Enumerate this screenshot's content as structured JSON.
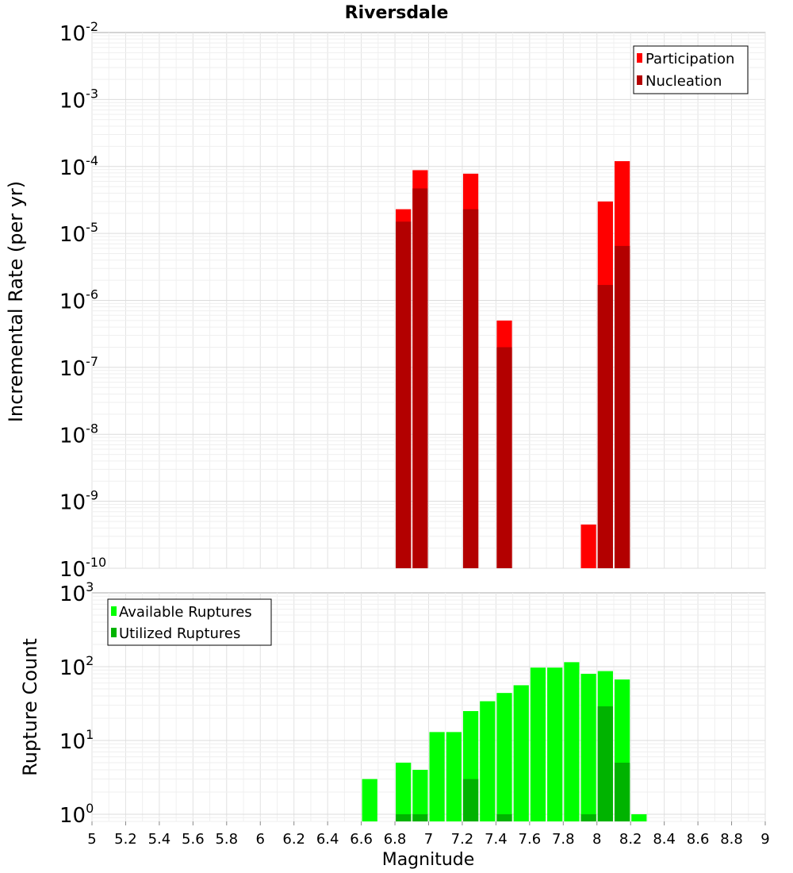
{
  "chart_data": [
    {
      "type": "bar",
      "title": "Riversdale",
      "ylabel": "Incremental Rate (per yr)",
      "xlabel": "",
      "yscale": "log",
      "ylim": [
        1e-10,
        0.01
      ],
      "xlim": [
        5,
        9
      ],
      "grid": true,
      "legend_placement": "top-right",
      "ytick_labels": [
        {
          "base": "10",
          "exp": "-10"
        },
        {
          "base": "10",
          "exp": "-9"
        },
        {
          "base": "10",
          "exp": "-8"
        },
        {
          "base": "10",
          "exp": "-7"
        },
        {
          "base": "10",
          "exp": "-6"
        },
        {
          "base": "10",
          "exp": "-5"
        },
        {
          "base": "10",
          "exp": "-4"
        },
        {
          "base": "10",
          "exp": "-3"
        },
        {
          "base": "10",
          "exp": "-2"
        }
      ],
      "series": [
        {
          "name": "Participation",
          "color": "#ff0000",
          "x": [
            6.85,
            6.95,
            7.25,
            7.45,
            7.95,
            8.05,
            8.15
          ],
          "values": [
            2.3e-05,
            8.8e-05,
            7.8e-05,
            5e-07,
            4.5e-10,
            3e-05,
            0.00012
          ]
        },
        {
          "name": "Nucleation",
          "color": "#b30000",
          "x": [
            6.85,
            6.95,
            7.25,
            7.45,
            8.05,
            8.15
          ],
          "values": [
            1.5e-05,
            4.7e-05,
            2.3e-05,
            2e-07,
            1.7e-06,
            6.5e-06
          ]
        }
      ]
    },
    {
      "type": "bar",
      "title": "",
      "ylabel": "Rupture Count",
      "xlabel": "Magnitude",
      "yscale": "log",
      "ylim": [
        0.8,
        1000
      ],
      "xlim": [
        5,
        9
      ],
      "grid": true,
      "legend_placement": "top-left",
      "xtick_labels": [
        "5",
        "5.2",
        "5.4",
        "5.6",
        "5.8",
        "6",
        "6.2",
        "6.4",
        "6.6",
        "6.8",
        "7",
        "7.2",
        "7.4",
        "7.6",
        "7.8",
        "8",
        "8.2",
        "8.4",
        "8.6",
        "8.8",
        "9"
      ],
      "ytick_labels": [
        {
          "base": "10",
          "exp": "0"
        },
        {
          "base": "10",
          "exp": "1"
        },
        {
          "base": "10",
          "exp": "2"
        },
        {
          "base": "10",
          "exp": "3"
        }
      ],
      "series": [
        {
          "name": "Available Ruptures",
          "color": "#00ff00",
          "x": [
            6.65,
            6.85,
            6.95,
            7.05,
            7.15,
            7.25,
            7.35,
            7.45,
            7.55,
            7.65,
            7.75,
            7.85,
            7.95,
            8.05,
            8.15,
            8.25
          ],
          "values": [
            3,
            5,
            4,
            13,
            13,
            25,
            34,
            44,
            56,
            97,
            97,
            115,
            80,
            87,
            67,
            1
          ]
        },
        {
          "name": "Utilized Ruptures",
          "color": "#00b300",
          "x": [
            6.85,
            6.95,
            7.25,
            7.45,
            7.95,
            8.05,
            8.15
          ],
          "values": [
            1,
            1,
            3,
            1,
            1,
            29,
            5
          ]
        }
      ]
    }
  ]
}
